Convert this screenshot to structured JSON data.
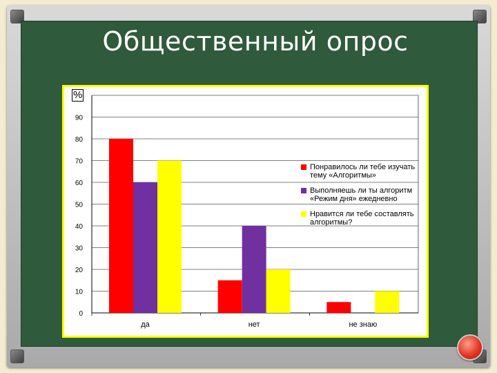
{
  "slide": {
    "title": "Общественный опрос",
    "colors": {
      "board": "#2f5a3b",
      "chart_border": "#ffff00",
      "background": "#f3ecd2"
    },
    "nav_icon": "red-circle-button-icon"
  },
  "chart_data": {
    "type": "bar",
    "title": "",
    "ylabel": "%",
    "xlabel": "",
    "ylim": [
      0,
      100
    ],
    "yticks": [
      0,
      10,
      20,
      30,
      40,
      50,
      60,
      70,
      80,
      90
    ],
    "grid": true,
    "legend_position": "right",
    "categories": [
      "да",
      "нет",
      "не знаю"
    ],
    "series": [
      {
        "name": "Понравилось ли тебе изучать тему «Алгоритмы»",
        "color": "#ff0000",
        "values": [
          80,
          15,
          5
        ]
      },
      {
        "name": "Выполняешь ли ты алгоритм «Режим дня» ежедневно",
        "color": "#7030a0",
        "values": [
          60,
          40,
          0
        ]
      },
      {
        "name": "Нравится ли тебе составлять алгоритмы?",
        "color": "#ffff00",
        "values": [
          70,
          20,
          10
        ]
      }
    ]
  }
}
